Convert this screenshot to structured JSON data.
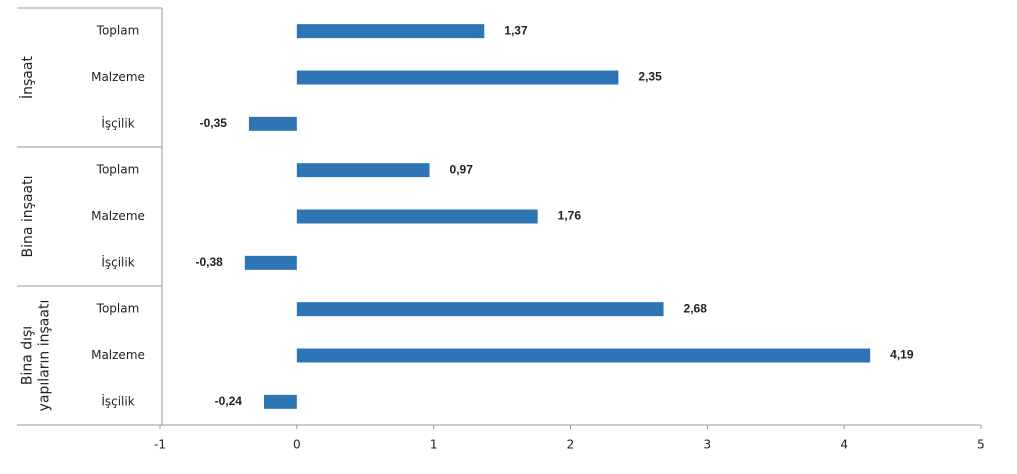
{
  "chart_data": {
    "type": "bar",
    "orientation": "horizontal",
    "color": "#2e75b6",
    "xlim": [
      -1,
      5
    ],
    "xticks": [
      -1,
      0,
      1,
      2,
      3,
      4,
      5
    ],
    "groups": [
      {
        "label": [
          "İnşaat"
        ],
        "categories": [
          "Toplam",
          "Malzeme",
          "İşçilik"
        ],
        "values": [
          1.37,
          2.35,
          -0.35
        ],
        "value_labels": [
          "1,37",
          "2,35",
          "-0,35"
        ]
      },
      {
        "label": [
          "Bina inşaatı"
        ],
        "categories": [
          "Toplam",
          "Malzeme",
          "İşçilik"
        ],
        "values": [
          0.97,
          1.76,
          -0.38
        ],
        "value_labels": [
          "0,97",
          "1,76",
          "-0,38"
        ]
      },
      {
        "label": [
          "Bina dışı",
          "yapıların inşaatı"
        ],
        "categories": [
          "Toplam",
          "Malzeme",
          "İşçilik"
        ],
        "values": [
          2.68,
          4.19,
          -0.24
        ],
        "value_labels": [
          "2,68",
          "4,19",
          "-0,24"
        ]
      }
    ]
  }
}
